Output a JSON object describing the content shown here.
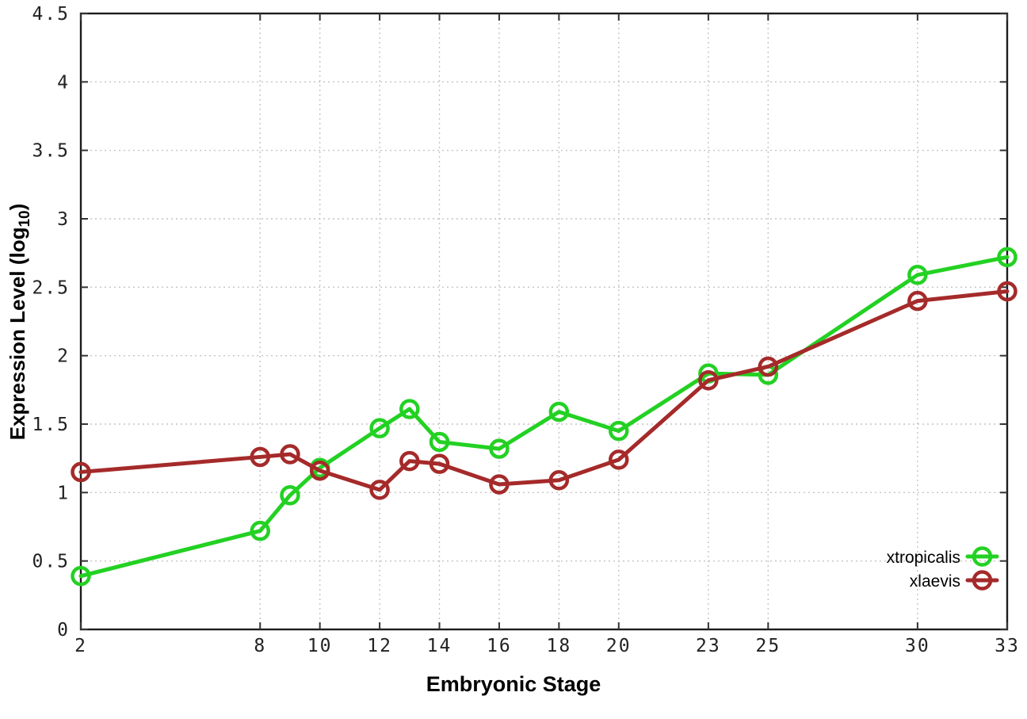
{
  "chart_data": {
    "type": "line",
    "title": "",
    "xlabel": "Embryonic Stage",
    "ylabel_main": "Expression Level (log",
    "ylabel_sub": "10",
    "ylabel_end": ")",
    "xlim": [
      2,
      33
    ],
    "ylim": [
      0,
      4.5
    ],
    "x_ticks": [
      2,
      8,
      10,
      12,
      14,
      16,
      18,
      20,
      23,
      25,
      30,
      33
    ],
    "y_ticks": [
      0,
      0.5,
      1,
      1.5,
      2,
      2.5,
      3,
      3.5,
      4,
      4.5
    ],
    "grid": true,
    "marker": "open-circle",
    "legend_position": "bottom-right",
    "x": [
      2,
      8,
      9,
      10,
      12,
      13,
      14,
      16,
      18,
      20,
      23,
      25,
      30,
      33
    ],
    "series": [
      {
        "name": "xtropicalis",
        "color": "#23d123",
        "values": [
          0.39,
          0.72,
          0.98,
          1.18,
          1.47,
          1.61,
          1.37,
          1.32,
          1.59,
          1.45,
          1.87,
          1.86,
          2.59,
          2.72
        ]
      },
      {
        "name": "xlaevis",
        "color": "#a52a2a",
        "values": [
          1.15,
          1.26,
          1.28,
          1.16,
          1.02,
          1.23,
          1.21,
          1.06,
          1.09,
          1.24,
          1.82,
          1.92,
          2.4,
          2.47
        ]
      }
    ]
  },
  "colors": {
    "background": "#ffffff",
    "frame": "#1c1c1c",
    "grid": "#c4c4c4",
    "tick": "#333333",
    "tick_label": "#222222"
  }
}
